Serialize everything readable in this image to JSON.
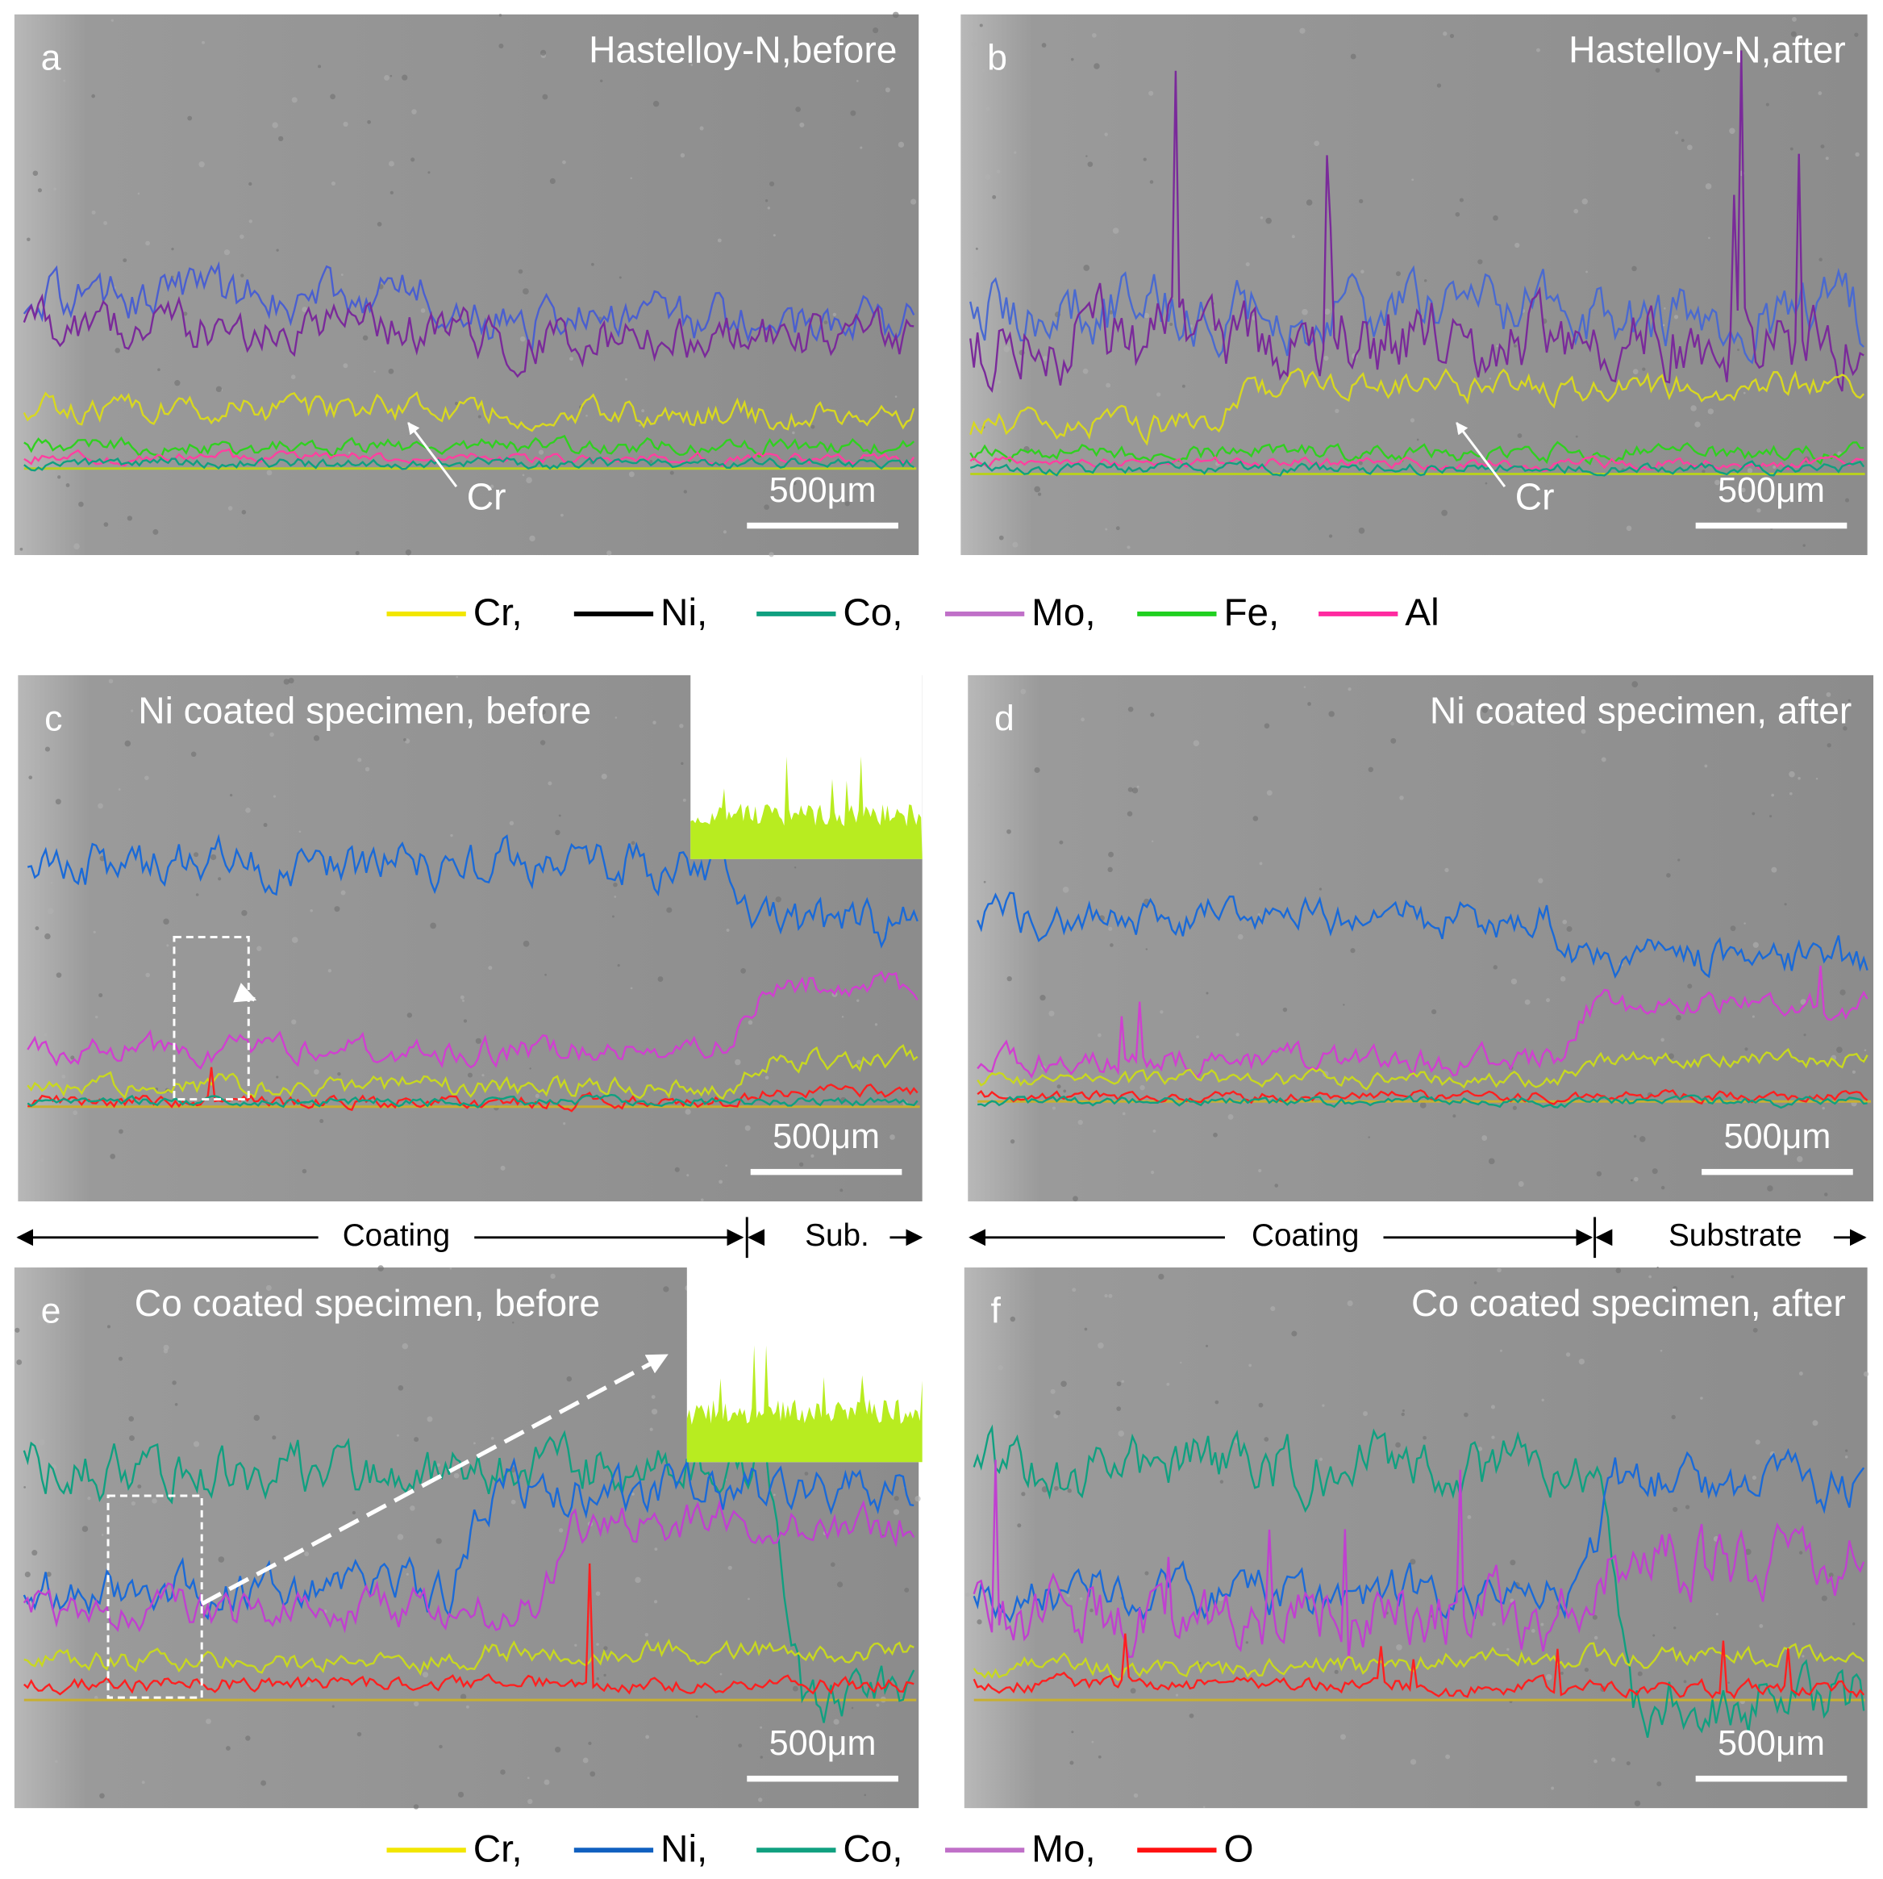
{
  "panels": [
    {
      "letter": "a",
      "title": "Hastelloy-N,before",
      "scale_bar": "500μm",
      "annotation": "Cr"
    },
    {
      "letter": "b",
      "title": "Hastelloy-N,after",
      "scale_bar": "500μm",
      "annotation": "Cr"
    },
    {
      "letter": "c",
      "title": "Ni coated specimen, before",
      "scale_bar": "500μm"
    },
    {
      "letter": "d",
      "title": "Ni coated specimen, after",
      "scale_bar": "500μm"
    },
    {
      "letter": "e",
      "title": "Co coated specimen, before",
      "scale_bar": "500μm"
    },
    {
      "letter": "f",
      "title": "Co coated specimen, after",
      "scale_bar": "500μm"
    }
  ],
  "legends": [
    {
      "entries": [
        {
          "name": "Cr,",
          "color": "#f2e600"
        },
        {
          "name": "Ni,",
          "color": "#000000"
        },
        {
          "name": "Co,",
          "color": "#10a080"
        },
        {
          "name": "Mo,",
          "color": "#c070c8"
        },
        {
          "name": "Fe,",
          "color": "#20d020"
        },
        {
          "name": "Al",
          "color": "#ff2aa0"
        }
      ]
    },
    {
      "entries": [
        {
          "name": "Cr,",
          "color": "#f2e600"
        },
        {
          "name": "Ni,",
          "color": "#1060c0"
        },
        {
          "name": "Co,",
          "color": "#10a080"
        },
        {
          "name": "Mo,",
          "color": "#c070c8"
        },
        {
          "name": "O",
          "color": "#ff1010"
        }
      ]
    }
  ],
  "regions": [
    {
      "coating": "Coating",
      "substrate": "Sub."
    },
    {
      "coating": "Coating",
      "substrate": "Substrate"
    }
  ]
}
